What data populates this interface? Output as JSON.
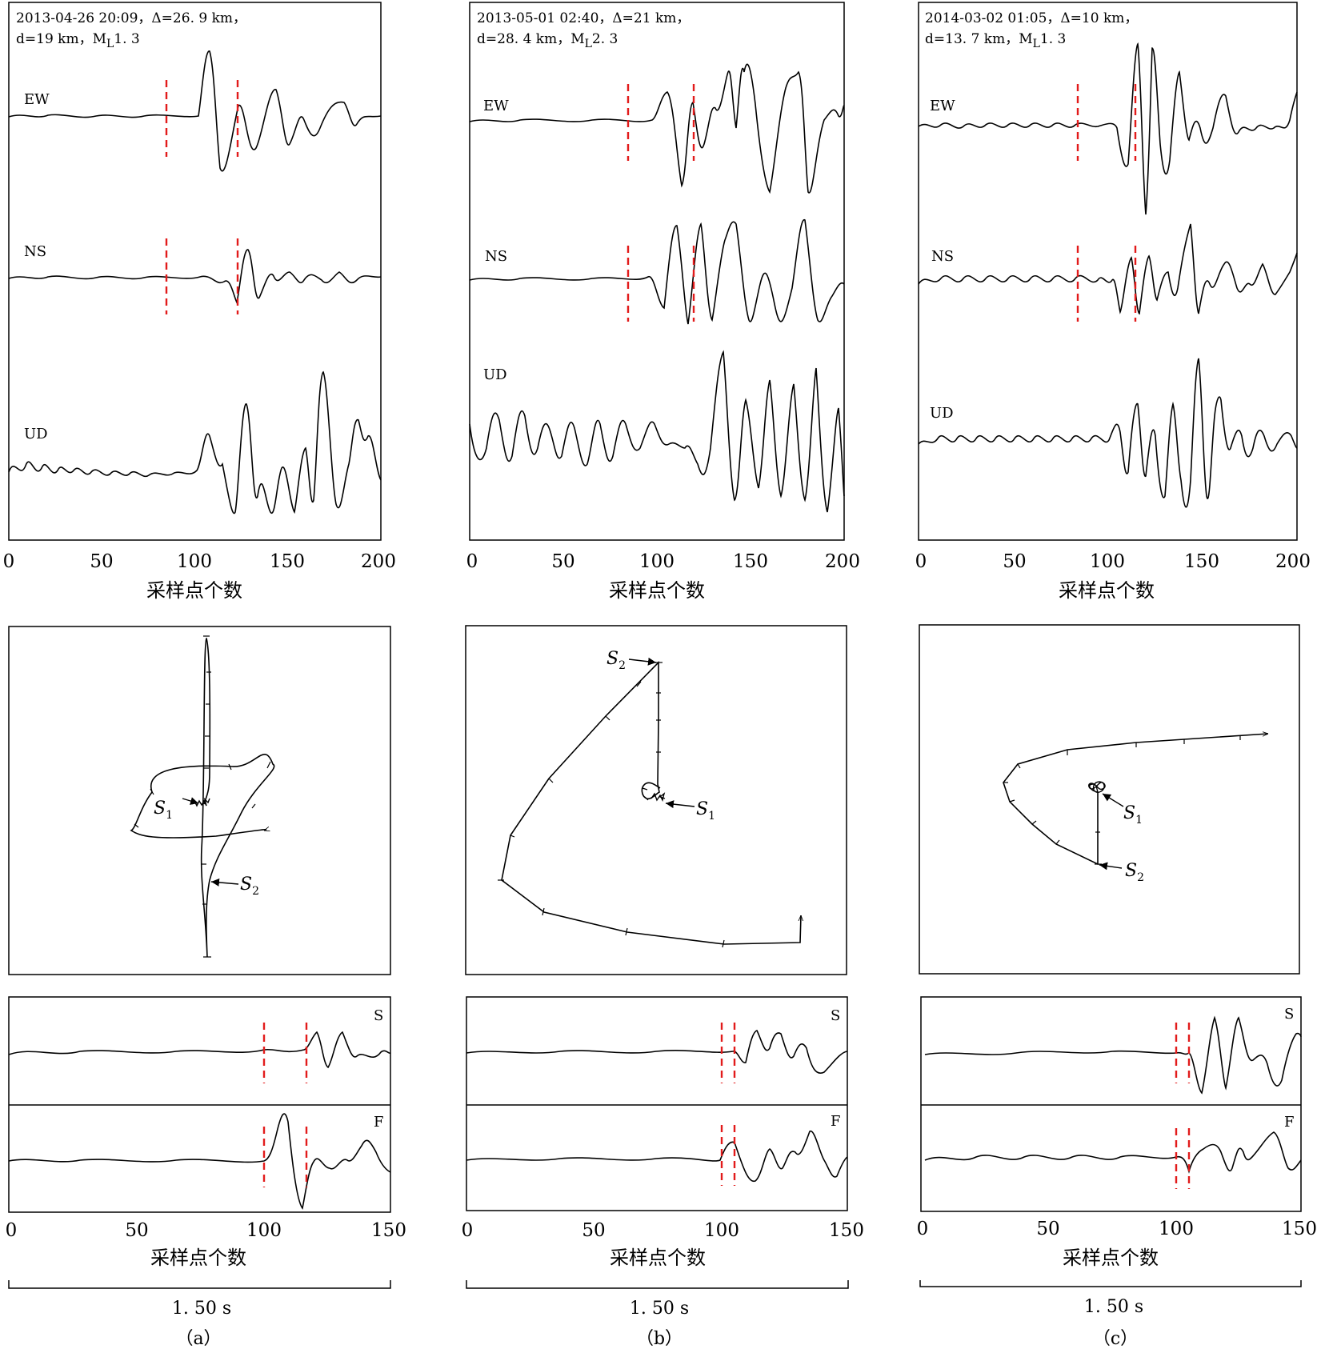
{
  "xlabel": "采样点个数",
  "duration_label": "1. 50 s",
  "component_labels": [
    "EW",
    "NS",
    "UD"
  ],
  "rotated_labels": [
    "S",
    "F"
  ],
  "s1_label": "S",
  "s1_sub": "1",
  "s2_label": "S",
  "s2_sub": "2",
  "top_x_ticks": [
    "0",
    "50",
    "100",
    "150",
    "200"
  ],
  "bottom_x_ticks": [
    "0",
    "50",
    "100",
    "150"
  ],
  "line_color": "#000000",
  "marker_color": "#e21b1b",
  "panels": [
    {
      "label": "（a）",
      "header_line1": "2013-04-26  20:09，Δ=26. 9 km，",
      "header_line2": "d=19 km，M",
      "header_ml_sub": "L",
      "header_ml_value": "1. 3"
    },
    {
      "label": "（b）",
      "header_line1": "2013-05-01  02:40，Δ=21 km，",
      "header_line2": "d=28. 4 km，M",
      "header_ml_sub": "L",
      "header_ml_value": "2. 3"
    },
    {
      "label": "（c）",
      "header_line1": "2014-03-02  01:05，Δ=10 km，",
      "header_line2": "d=13. 7 km，M",
      "header_ml_sub": "L",
      "header_ml_value": "1. 3"
    }
  ],
  "chart_data": [
    {
      "panel": "a",
      "type": "line",
      "title": "",
      "xlabel": "采样点个数",
      "xlim": [
        0,
        200
      ],
      "series_names": [
        "EW",
        "NS",
        "UD"
      ],
      "picks_sample": [
        85,
        123
      ],
      "hodogram": {
        "s1": "S1",
        "s2": "S2",
        "axes": "none"
      },
      "rotated": {
        "series_names": [
          "S",
          "F"
        ],
        "xlim": [
          0,
          150
        ],
        "picks_sample": [
          100,
          117
        ]
      }
    },
    {
      "panel": "b",
      "type": "line",
      "title": "",
      "xlabel": "采样点个数",
      "xlim": [
        0,
        200
      ],
      "series_names": [
        "EW",
        "NS",
        "UD"
      ],
      "picks_sample": [
        85,
        120
      ],
      "hodogram": {
        "s1": "S1",
        "s2": "S2",
        "axes": "none"
      },
      "rotated": {
        "series_names": [
          "S",
          "F"
        ],
        "xlim": [
          0,
          150
        ],
        "picks_sample": [
          100,
          105
        ]
      }
    },
    {
      "panel": "c",
      "type": "line",
      "title": "",
      "xlabel": "采样点个数",
      "xlim": [
        0,
        200
      ],
      "series_names": [
        "EW",
        "NS",
        "UD"
      ],
      "picks_sample": [
        85,
        115
      ],
      "hodogram": {
        "s1": "S1",
        "s2": "S2",
        "axes": "none"
      },
      "rotated": {
        "series_names": [
          "S",
          "F"
        ],
        "xlim": [
          0,
          150
        ],
        "picks_sample": [
          100,
          105
        ]
      }
    }
  ]
}
